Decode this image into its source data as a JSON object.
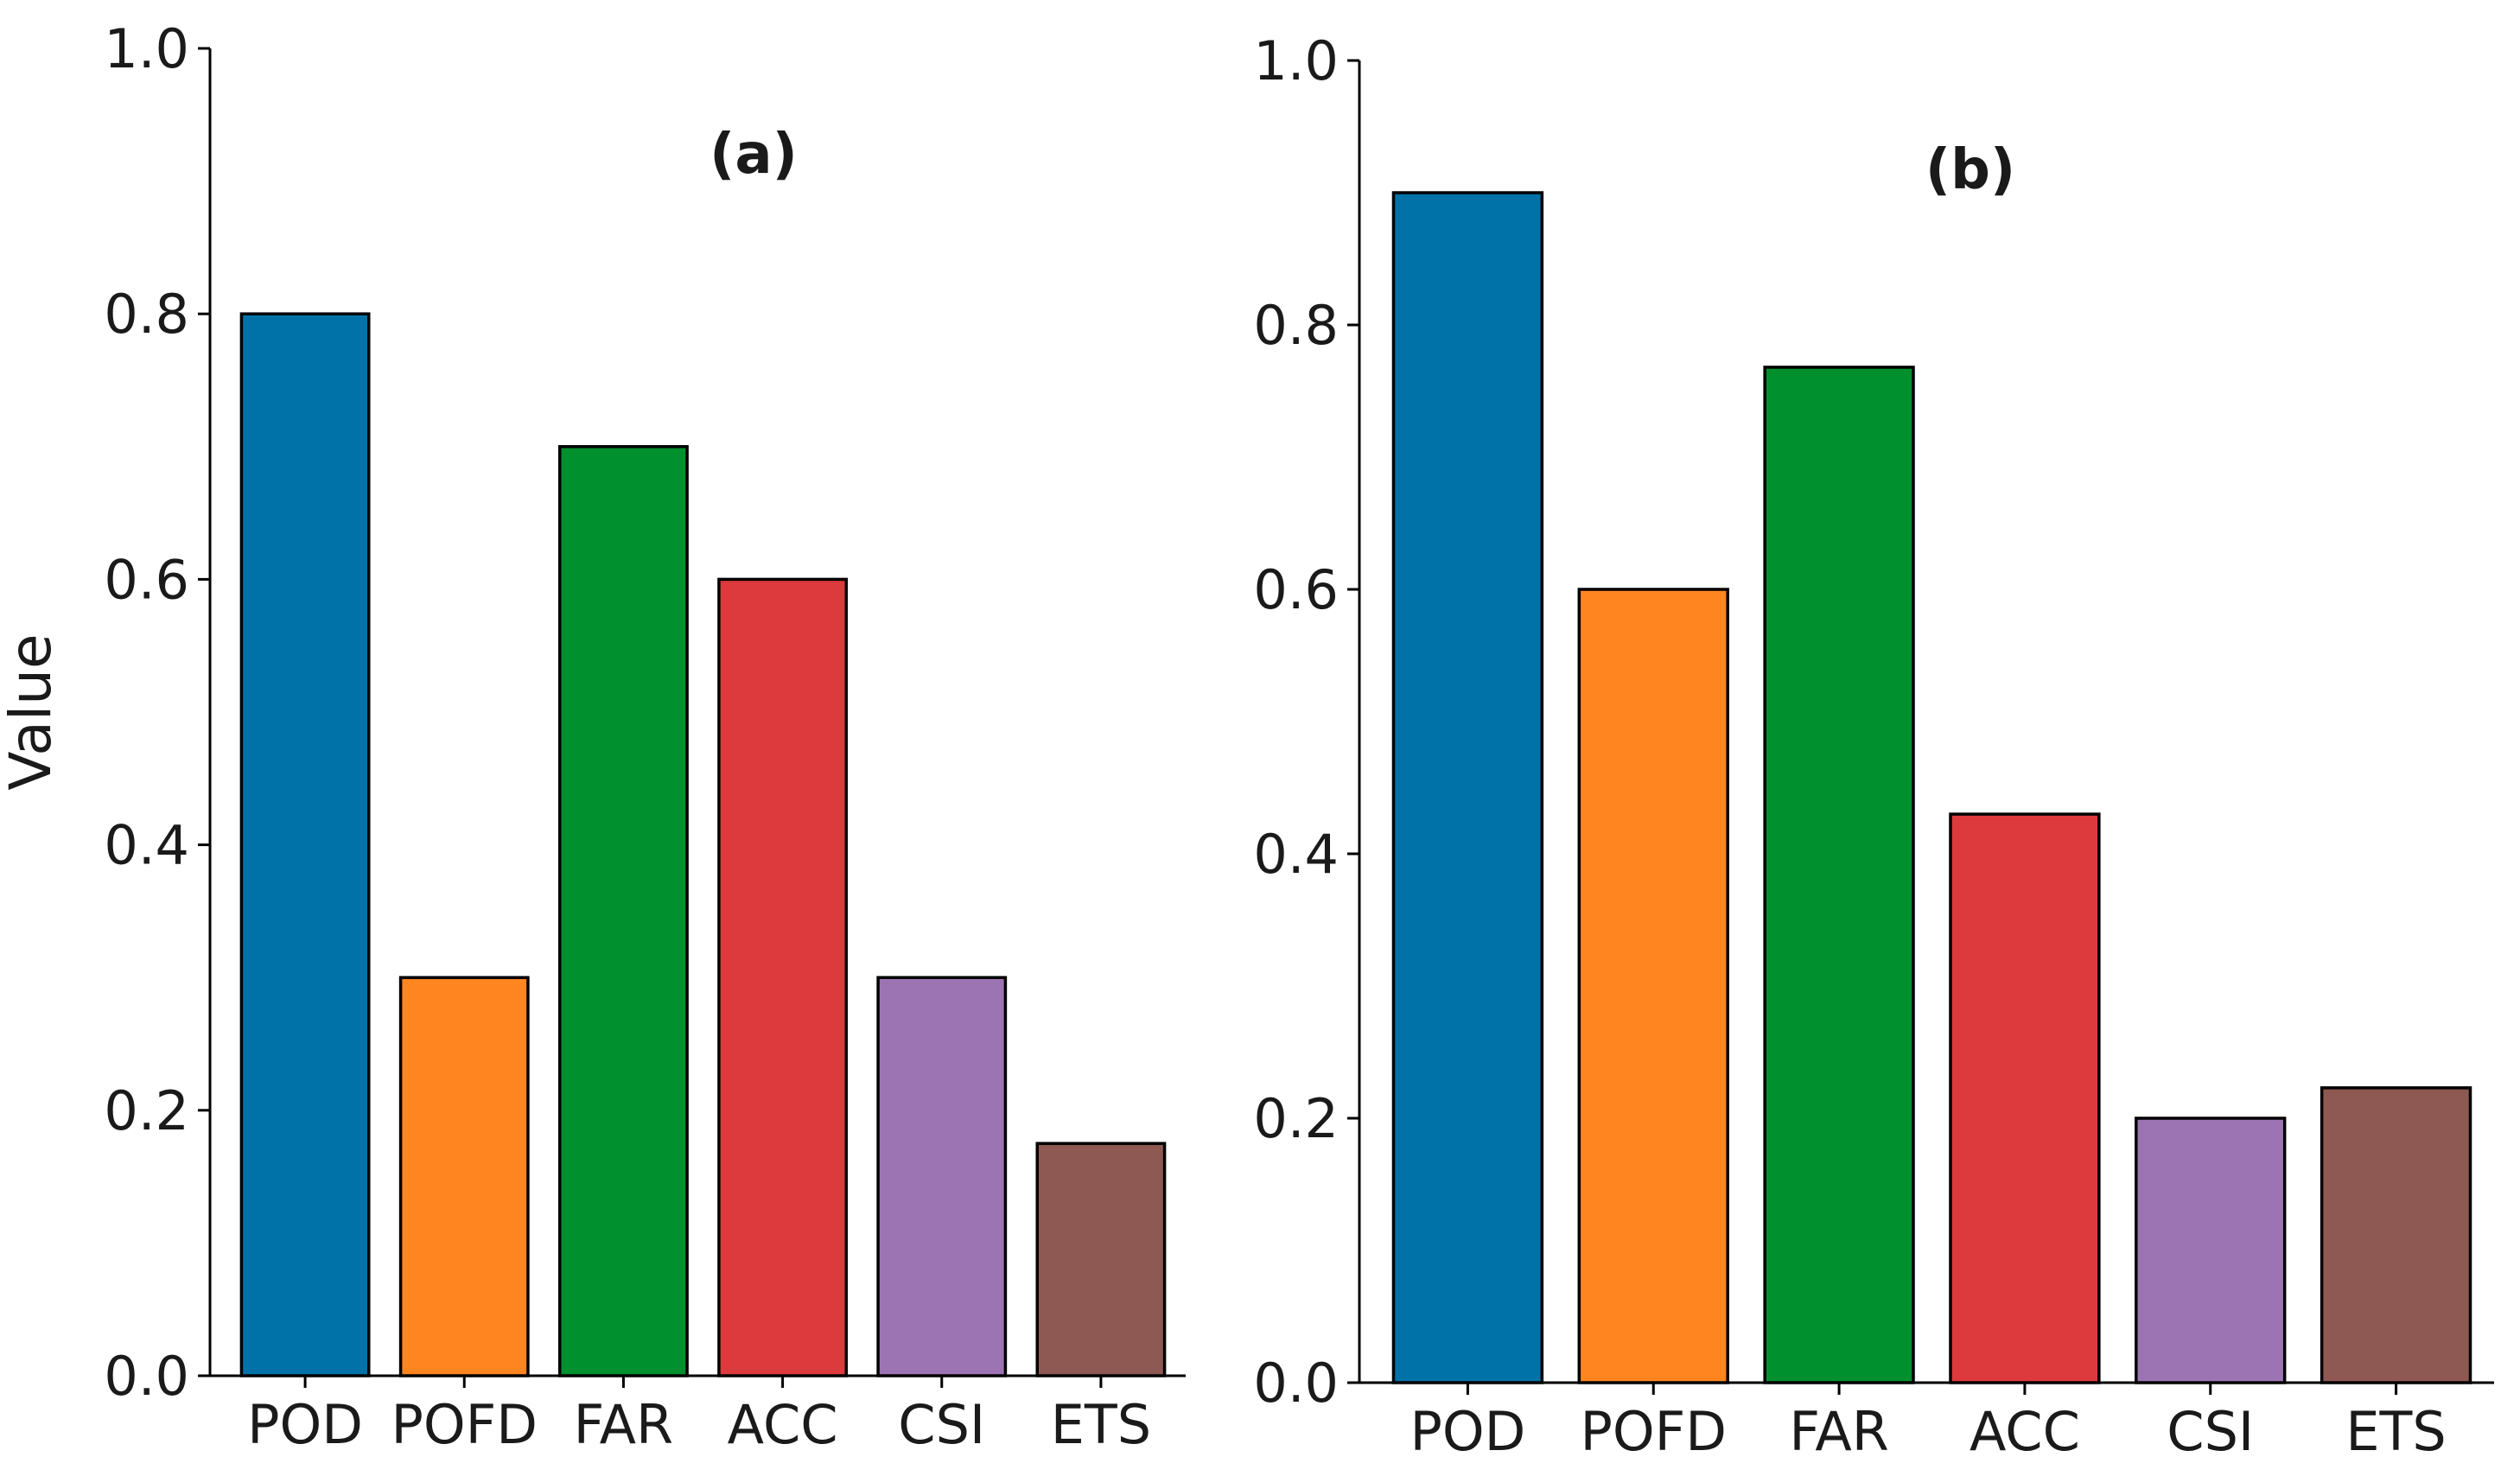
{
  "chart_data": [
    {
      "type": "bar",
      "title": "(a)",
      "xlabel": "",
      "ylabel": "Value",
      "ylim": [
        0,
        1.0
      ],
      "yticks": [
        "0.0",
        "0.2",
        "0.4",
        "0.6",
        "0.8",
        "1.0"
      ],
      "categories": [
        "POD",
        "POFD",
        "FAR",
        "ACC",
        "CSI",
        "ETS"
      ],
      "values": [
        0.8,
        0.3,
        0.7,
        0.6,
        0.3,
        0.175
      ],
      "colors": [
        "#0072a8",
        "#ff8521",
        "#00902e",
        "#dd3a3d",
        "#9d74b3",
        "#8e5853"
      ]
    },
    {
      "type": "bar",
      "title": "(b)",
      "xlabel": "",
      "ylabel": "",
      "ylim": [
        0,
        1.0
      ],
      "yticks": [
        "0.0",
        "0.2",
        "0.4",
        "0.6",
        "0.8",
        "1.0"
      ],
      "categories": [
        "POD",
        "POFD",
        "FAR",
        "ACC",
        "CSI",
        "ETS"
      ],
      "values": [
        0.9,
        0.6,
        0.768,
        0.43,
        0.2,
        0.223
      ],
      "colors": [
        "#0072a8",
        "#ff8521",
        "#00902e",
        "#dd3a3d",
        "#9d74b3",
        "#8e5853"
      ]
    }
  ]
}
